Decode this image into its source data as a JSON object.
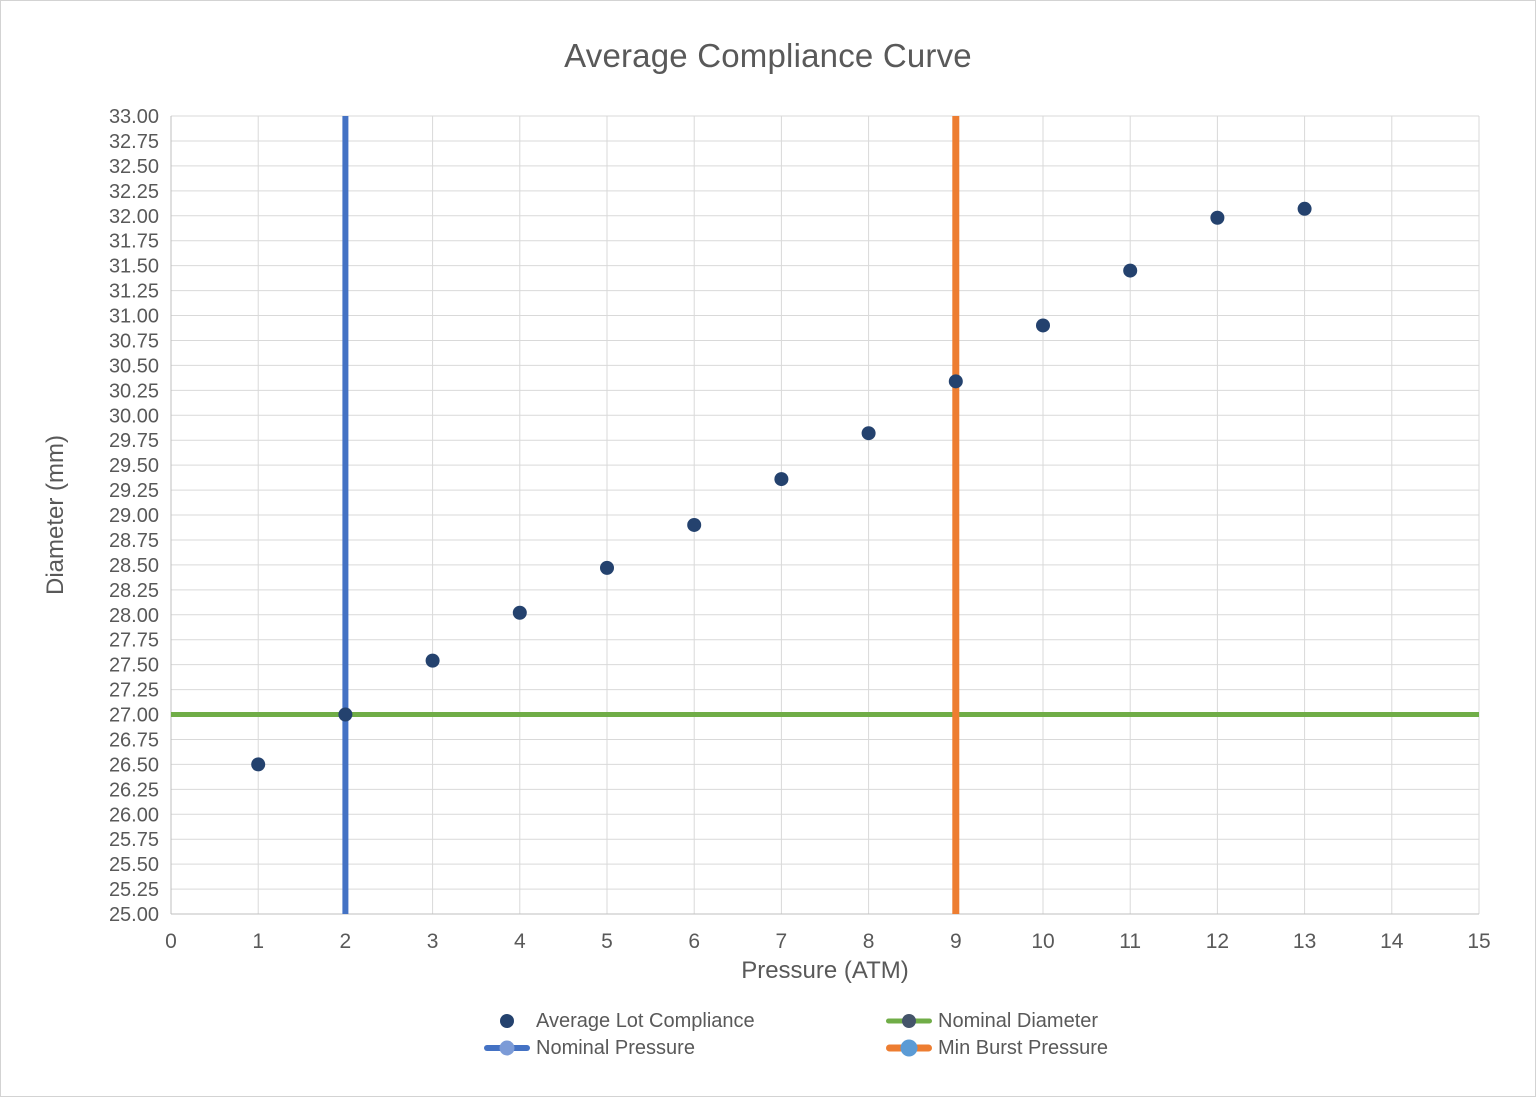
{
  "chart_data": {
    "type": "scatter",
    "title": "Average Compliance Curve",
    "xlabel": "Pressure (ATM)",
    "ylabel": "Diameter (mm)",
    "xlim": [
      0,
      15
    ],
    "ylim": [
      25,
      33
    ],
    "x_ticks": [
      0,
      1,
      2,
      3,
      4,
      5,
      6,
      7,
      8,
      9,
      10,
      11,
      12,
      13,
      14,
      15
    ],
    "y_ticks": [
      33.0,
      32.75,
      32.5,
      32.25,
      32.0,
      31.75,
      31.5,
      31.25,
      31.0,
      30.75,
      30.5,
      30.25,
      30.0,
      29.75,
      29.5,
      29.25,
      29.0,
      28.75,
      28.5,
      28.25,
      28.0,
      27.75,
      27.5,
      27.25,
      27.0,
      26.75,
      26.5,
      26.25,
      26.0,
      25.75,
      25.5,
      25.25,
      25.0
    ],
    "grid": true,
    "legend_position": "bottom",
    "colors": {
      "axis": "#BFBFBF",
      "grid": "#D9D9D9",
      "text": "#595959",
      "background": "#FFFFFF"
    },
    "series": [
      {
        "name": "Average Lot Compliance",
        "type": "scatter",
        "color": "#24426E",
        "marker_radius": 7,
        "x": [
          1,
          2,
          3,
          4,
          5,
          6,
          7,
          8,
          9,
          10,
          11,
          12,
          13
        ],
        "y": [
          26.5,
          27.0,
          27.54,
          28.02,
          28.47,
          28.9,
          29.36,
          29.82,
          30.34,
          30.9,
          31.45,
          31.98,
          32.07
        ]
      },
      {
        "name": "Nominal Pressure",
        "type": "vline",
        "x": 2,
        "color": "#4472C4",
        "width": 6
      },
      {
        "name": "Min Burst Pressure",
        "type": "vline",
        "x": 9,
        "color": "#ED7D31",
        "width": 7
      },
      {
        "name": "Nominal Diameter",
        "type": "hline",
        "y": 27,
        "color": "#70AD47",
        "width": 5
      }
    ],
    "legend": [
      {
        "label": "Average Lot Compliance",
        "marker": "dot",
        "line_color": null,
        "line_width": 0,
        "dot_color": "#24426E",
        "dot_size": 14
      },
      {
        "label": "Nominal Diameter",
        "marker": "line-dot",
        "line_color": "#70AD47",
        "line_width": 5,
        "dot_color": "#44546A",
        "dot_size": 14
      },
      {
        "label": "Nominal Pressure",
        "marker": "line-dot",
        "line_color": "#4472C4",
        "line_width": 6,
        "dot_color": "#7C9BD7",
        "dot_size": 15
      },
      {
        "label": "Min Burst Pressure",
        "marker": "line-dot",
        "line_color": "#ED7D31",
        "line_width": 7,
        "dot_color": "#5B9BD5",
        "dot_size": 17
      }
    ]
  }
}
